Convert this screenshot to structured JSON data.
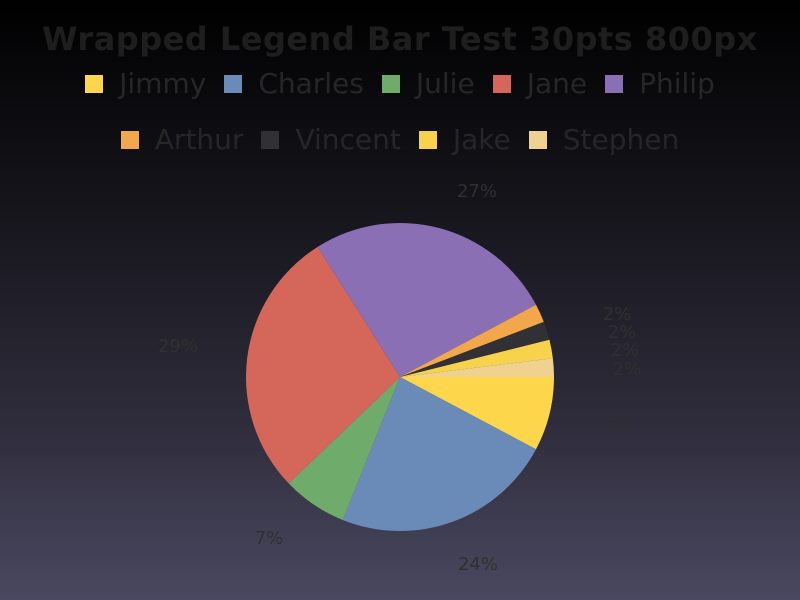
{
  "chart_data": {
    "type": "pie",
    "title": "Wrapped Legend Bar Test 30pts 800px",
    "legend_position": "top",
    "slices": [
      {
        "name": "Jimmy",
        "value": 8,
        "label": "8%",
        "color": "#fdd64c"
      },
      {
        "name": "Charles",
        "value": 24,
        "label": "24%",
        "color": "#6a8ab8"
      },
      {
        "name": "Julie",
        "value": 7,
        "label": "7%",
        "color": "#6fab6b"
      },
      {
        "name": "Jane",
        "value": 29,
        "label": "29%",
        "color": "#d4675a"
      },
      {
        "name": "Philip",
        "value": 27,
        "label": "27%",
        "color": "#8a6fb4"
      },
      {
        "name": "Arthur",
        "value": 2,
        "label": "2%",
        "color": "#f2a74c"
      },
      {
        "name": "Vincent",
        "value": 2,
        "label": "2%",
        "color": "#303035"
      },
      {
        "name": "Jake",
        "value": 2,
        "label": "2%",
        "color": "#f7d34b"
      },
      {
        "name": "Stephen",
        "value": 2,
        "label": "2%",
        "color": "#efd28f"
      }
    ]
  }
}
